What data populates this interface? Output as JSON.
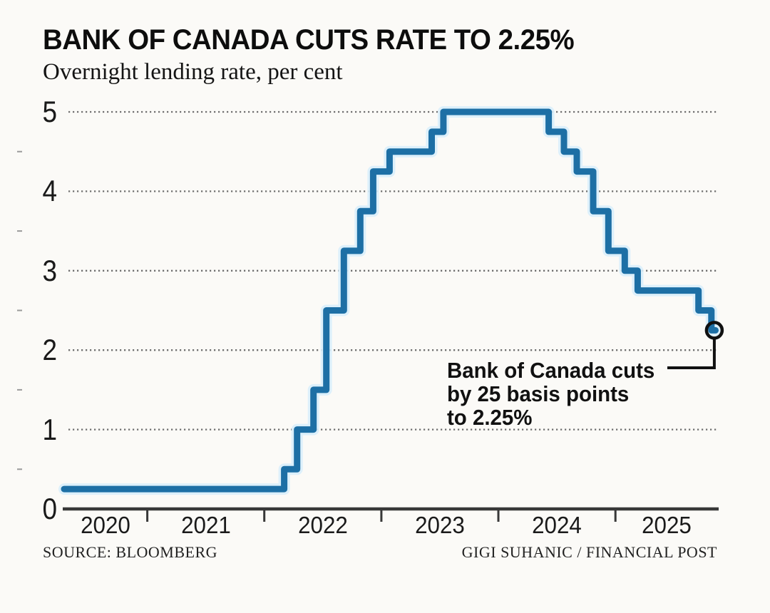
{
  "chart_data": {
    "type": "line",
    "step_mode": "after",
    "title": "BANK OF CANADA CUTS RATE TO 2.25%",
    "subtitle": "Overnight lending rate, per cent",
    "source": "SOURCE: BLOOMBERG",
    "credit": "GIGI SUHANIC / FINANCIAL POST",
    "line_color": "#1d6fa5",
    "line_glow_color": "#d9eefb",
    "annotation_color": "#111111",
    "grid": true,
    "legend": false,
    "xlabel": "",
    "ylabel": "per cent",
    "x_domain": [
      2020.29,
      2025.87
    ],
    "ylim": [
      0,
      5
    ],
    "y_ticks": [
      0,
      1,
      2,
      3,
      4,
      5
    ],
    "y_gridlines": [
      1,
      2,
      3,
      4,
      5
    ],
    "y_minor_ticks": [
      0.5,
      1.5,
      2.5,
      3.5,
      4.5
    ],
    "x_ticks": [
      2021,
      2022,
      2023,
      2024,
      2025
    ],
    "x_year_labels": [
      2020,
      2021,
      2022,
      2023,
      2024,
      2025
    ],
    "series": [
      {
        "name": "Overnight lending rate (%)",
        "x_end": 2025.855,
        "points": [
          {
            "x": 2020.29,
            "y": 0.25
          },
          {
            "x": 2022.17,
            "y": 0.5
          },
          {
            "x": 2022.28,
            "y": 1.0
          },
          {
            "x": 2022.42,
            "y": 1.5
          },
          {
            "x": 2022.53,
            "y": 2.5
          },
          {
            "x": 2022.68,
            "y": 3.25
          },
          {
            "x": 2022.82,
            "y": 3.75
          },
          {
            "x": 2022.93,
            "y": 4.25
          },
          {
            "x": 2023.07,
            "y": 4.5
          },
          {
            "x": 2023.43,
            "y": 4.75
          },
          {
            "x": 2023.53,
            "y": 5.0
          },
          {
            "x": 2024.43,
            "y": 4.75
          },
          {
            "x": 2024.56,
            "y": 4.5
          },
          {
            "x": 2024.67,
            "y": 4.25
          },
          {
            "x": 2024.81,
            "y": 3.75
          },
          {
            "x": 2024.94,
            "y": 3.25
          },
          {
            "x": 2025.08,
            "y": 3.0
          },
          {
            "x": 2025.19,
            "y": 2.75
          },
          {
            "x": 2025.71,
            "y": 2.5
          },
          {
            "x": 2025.82,
            "y": 2.25
          }
        ]
      }
    ],
    "annotation": {
      "lines": [
        "Bank of Canada cuts",
        "by 25 basis points",
        "to 2.25%"
      ],
      "marker": {
        "x": 2025.845,
        "y": 2.25,
        "style": "open-circle"
      }
    }
  }
}
